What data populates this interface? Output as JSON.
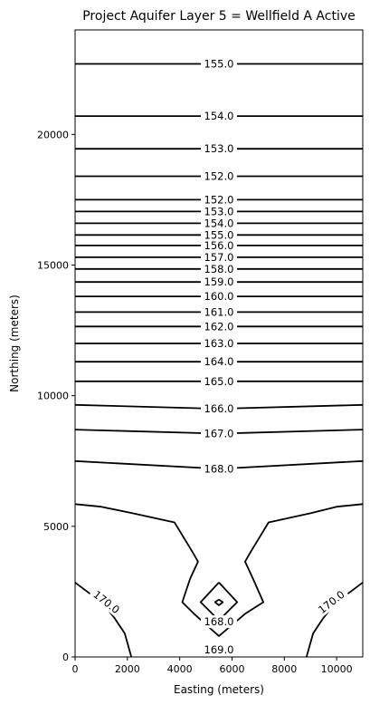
{
  "chart_data": {
    "type": "contour",
    "title": "Project Aquifer Layer 5 = Wellfield A Active",
    "xlabel": "Easting (meters)",
    "ylabel": "Northing (meters)",
    "xlim": [
      0,
      11000
    ],
    "ylim": [
      0,
      24000
    ],
    "xticks": [
      0,
      2000,
      4000,
      6000,
      8000,
      10000
    ],
    "yticks": [
      0,
      5000,
      10000,
      15000,
      20000
    ],
    "grid": false,
    "horizontal_contours": [
      {
        "level": "155.0",
        "y_left": 22700,
        "y_mid": 22700,
        "y_right": 22700
      },
      {
        "level": "154.0",
        "y_left": 20700,
        "y_mid": 20700,
        "y_right": 20700
      },
      {
        "level": "153.0",
        "y_left": 19450,
        "y_mid": 19450,
        "y_right": 19450
      },
      {
        "level": "152.0",
        "y_left": 18400,
        "y_mid": 18400,
        "y_right": 18400
      },
      {
        "level": "152.0",
        "y_left": 17500,
        "y_mid": 17500,
        "y_right": 17500
      },
      {
        "level": "153.0",
        "y_left": 17050,
        "y_mid": 17050,
        "y_right": 17050
      },
      {
        "level": "154.0",
        "y_left": 16600,
        "y_mid": 16600,
        "y_right": 16600
      },
      {
        "level": "155.0",
        "y_left": 16150,
        "y_mid": 16150,
        "y_right": 16150
      },
      {
        "level": "156.0",
        "y_left": 15750,
        "y_mid": 15750,
        "y_right": 15750
      },
      {
        "level": "157.0",
        "y_left": 15300,
        "y_mid": 15300,
        "y_right": 15300
      },
      {
        "level": "158.0",
        "y_left": 14850,
        "y_mid": 14850,
        "y_right": 14850
      },
      {
        "level": "159.0",
        "y_left": 14350,
        "y_mid": 14350,
        "y_right": 14350
      },
      {
        "level": "160.0",
        "y_left": 13800,
        "y_mid": 13800,
        "y_right": 13800
      },
      {
        "level": "161.0",
        "y_left": 13200,
        "y_mid": 13200,
        "y_right": 13200
      },
      {
        "level": "162.0",
        "y_left": 12650,
        "y_mid": 12650,
        "y_right": 12650
      },
      {
        "level": "163.0",
        "y_left": 12000,
        "y_mid": 12000,
        "y_right": 12000
      },
      {
        "level": "164.0",
        "y_left": 11300,
        "y_mid": 11300,
        "y_right": 11300
      },
      {
        "level": "165.0",
        "y_left": 10550,
        "y_mid": 10550,
        "y_right": 10550
      },
      {
        "level": "166.0",
        "y_left": 9650,
        "y_mid": 9500,
        "y_right": 9650
      },
      {
        "level": "167.0",
        "y_left": 8700,
        "y_mid": 8550,
        "y_right": 8700
      },
      {
        "level": "168.0",
        "y_left": 7500,
        "y_mid": 7200,
        "y_right": 7500
      }
    ],
    "polyline_contours": [
      {
        "level": "169.0",
        "points": [
          [
            0,
            5850
          ],
          [
            1000,
            5750
          ],
          [
            2200,
            5500
          ],
          [
            3800,
            5150
          ],
          [
            4500,
            4000
          ],
          [
            4700,
            3650
          ],
          [
            4400,
            3000
          ],
          [
            4100,
            2100
          ],
          [
            4550,
            1650
          ],
          [
            5500,
            800
          ],
          [
            6500,
            1650
          ],
          [
            7200,
            2100
          ],
          [
            6800,
            3000
          ],
          [
            6500,
            3650
          ],
          [
            6700,
            4000
          ],
          [
            7400,
            5150
          ],
          [
            9000,
            5500
          ],
          [
            10000,
            5750
          ],
          [
            11000,
            5850
          ]
        ]
      },
      {
        "level": "170.0",
        "points": [
          [
            0,
            2850
          ],
          [
            600,
            2400
          ],
          [
            1100,
            2000
          ],
          [
            1500,
            1500
          ],
          [
            1900,
            900
          ],
          [
            2150,
            0
          ]
        ]
      },
      {
        "level": "170.0",
        "points": [
          [
            11000,
            2850
          ],
          [
            10400,
            2400
          ],
          [
            9900,
            2000
          ],
          [
            9500,
            1500
          ],
          [
            9100,
            900
          ],
          [
            8850,
            0
          ]
        ]
      },
      {
        "level": "168.0",
        "points": [
          [
            5500,
            2850
          ],
          [
            6200,
            2100
          ],
          [
            5500,
            1400
          ],
          [
            4800,
            2100
          ],
          [
            5500,
            2850
          ]
        ]
      },
      {
        "level": "169.0",
        "points": [
          [
            5500,
            2200
          ],
          [
            5650,
            2100
          ],
          [
            5500,
            1980
          ],
          [
            5350,
            2100
          ],
          [
            5500,
            2200
          ]
        ]
      }
    ],
    "contour_labels": [
      {
        "text": "155.0",
        "x": 5500,
        "y": 22700,
        "rotation": 0
      },
      {
        "text": "154.0",
        "x": 5500,
        "y": 20700,
        "rotation": 0
      },
      {
        "text": "153.0",
        "x": 5500,
        "y": 19450,
        "rotation": 0
      },
      {
        "text": "152.0",
        "x": 5500,
        "y": 18400,
        "rotation": 0
      },
      {
        "text": "152.0",
        "x": 5500,
        "y": 17500,
        "rotation": 0
      },
      {
        "text": "153.0",
        "x": 5500,
        "y": 17050,
        "rotation": 0
      },
      {
        "text": "154.0",
        "x": 5500,
        "y": 16600,
        "rotation": 0
      },
      {
        "text": "155.0",
        "x": 5500,
        "y": 16150,
        "rotation": 0
      },
      {
        "text": "156.0",
        "x": 5500,
        "y": 15750,
        "rotation": 0
      },
      {
        "text": "157.0",
        "x": 5500,
        "y": 15300,
        "rotation": 0
      },
      {
        "text": "158.0",
        "x": 5500,
        "y": 14850,
        "rotation": 0
      },
      {
        "text": "159.0",
        "x": 5500,
        "y": 14350,
        "rotation": 0
      },
      {
        "text": "160.0",
        "x": 5500,
        "y": 13800,
        "rotation": 0
      },
      {
        "text": "161.0",
        "x": 5500,
        "y": 13200,
        "rotation": 0
      },
      {
        "text": "162.0",
        "x": 5500,
        "y": 12650,
        "rotation": 0
      },
      {
        "text": "163.0",
        "x": 5500,
        "y": 12000,
        "rotation": 0
      },
      {
        "text": "164.0",
        "x": 5500,
        "y": 11300,
        "rotation": 0
      },
      {
        "text": "165.0",
        "x": 5500,
        "y": 10550,
        "rotation": 0
      },
      {
        "text": "166.0",
        "x": 5500,
        "y": 9500,
        "rotation": 0
      },
      {
        "text": "167.0",
        "x": 5500,
        "y": 8550,
        "rotation": 0
      },
      {
        "text": "168.0",
        "x": 5500,
        "y": 7200,
        "rotation": 0
      },
      {
        "text": "170.0",
        "x": 1200,
        "y": 2100,
        "rotation": 38
      },
      {
        "text": "170.0",
        "x": 9800,
        "y": 2100,
        "rotation": -38
      },
      {
        "text": "168.0",
        "x": 5500,
        "y": 1350,
        "rotation": 0
      },
      {
        "text": "169.0",
        "x": 5500,
        "y": 280,
        "rotation": 0
      }
    ]
  }
}
